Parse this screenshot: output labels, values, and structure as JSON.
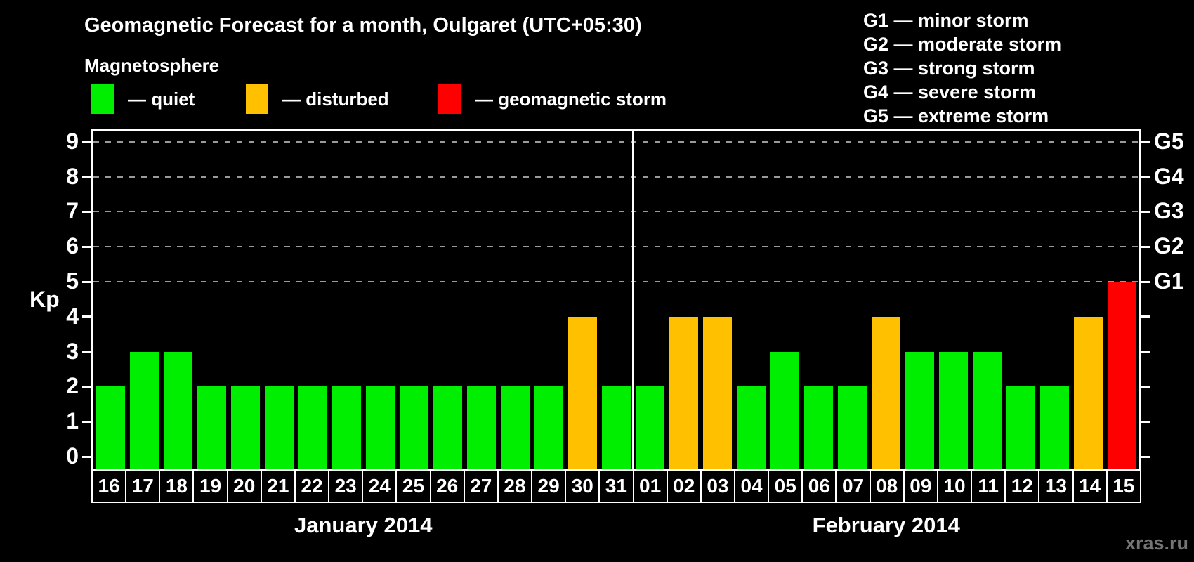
{
  "title": "Geomagnetic Forecast for a month, Oulgaret (UTC+05:30)",
  "legend": {
    "heading": "Magnetosphere",
    "items": [
      {
        "key": "quiet",
        "label": "— quiet",
        "color": "#00ee00"
      },
      {
        "key": "disturbed",
        "label": "— disturbed",
        "color": "#ffc000"
      },
      {
        "key": "storm",
        "label": "— geomagnetic storm",
        "color": "#ff0000"
      }
    ]
  },
  "g_scale_legend": [
    "G1 — minor storm",
    "G2 — moderate storm",
    "G3 — strong storm",
    "G4 — severe storm",
    "G5 — extreme storm"
  ],
  "watermark": "xras.ru",
  "chart_data": {
    "type": "bar",
    "ylabel": "Kp",
    "ylim": [
      -0.37,
      9.53
    ],
    "y_ticks": [
      0,
      1,
      2,
      3,
      4,
      5,
      6,
      7,
      8,
      9
    ],
    "gridlines_at": [
      5,
      6,
      7,
      8,
      9
    ],
    "grid_style": "dashed",
    "right_axis_labels": [
      {
        "kp": 5,
        "label": "G1"
      },
      {
        "kp": 6,
        "label": "G2"
      },
      {
        "kp": 7,
        "label": "G3"
      },
      {
        "kp": 8,
        "label": "G4"
      },
      {
        "kp": 9,
        "label": "G5"
      }
    ],
    "colors": {
      "quiet": "#00ee00",
      "disturbed": "#ffc000",
      "storm": "#ff0000"
    },
    "months": [
      {
        "label": "January 2014",
        "days": [
          "16",
          "17",
          "18",
          "19",
          "20",
          "21",
          "22",
          "23",
          "24",
          "25",
          "26",
          "27",
          "28",
          "29",
          "30",
          "31"
        ],
        "values": [
          2,
          3,
          3,
          2,
          2,
          2,
          2,
          2,
          2,
          2,
          2,
          2,
          2,
          2,
          4,
          2
        ],
        "status": [
          "quiet",
          "quiet",
          "quiet",
          "quiet",
          "quiet",
          "quiet",
          "quiet",
          "quiet",
          "quiet",
          "quiet",
          "quiet",
          "quiet",
          "quiet",
          "quiet",
          "disturbed",
          "quiet"
        ]
      },
      {
        "label": "February 2014",
        "days": [
          "01",
          "02",
          "03",
          "04",
          "05",
          "06",
          "07",
          "08",
          "09",
          "10",
          "11",
          "12",
          "13",
          "14",
          "15"
        ],
        "values": [
          2,
          4,
          4,
          2,
          3,
          2,
          2,
          4,
          3,
          3,
          3,
          2,
          2,
          4,
          5
        ],
        "status": [
          "quiet",
          "disturbed",
          "disturbed",
          "quiet",
          "quiet",
          "quiet",
          "quiet",
          "disturbed",
          "quiet",
          "quiet",
          "quiet",
          "quiet",
          "quiet",
          "disturbed",
          "storm"
        ]
      }
    ]
  }
}
